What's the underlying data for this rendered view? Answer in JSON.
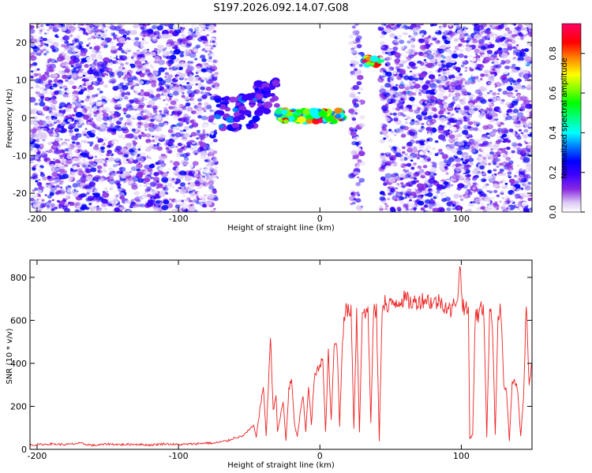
{
  "title": "S197.2026.092.14.07.G08",
  "chart_data": [
    {
      "type": "heatmap",
      "xlabel": "Height of straight line (km)",
      "ylabel": "Frequency (Hz)",
      "xlim": [
        -205,
        150
      ],
      "ylim": [
        -25,
        25
      ],
      "xticks": [
        -200,
        -100,
        0,
        100
      ],
      "yticks": [
        -20,
        -10,
        0,
        10,
        20
      ],
      "colorbar": {
        "label": "Normalized spectral amplitude",
        "range": [
          0,
          0.95
        ],
        "ticks": [
          0.0,
          0.2,
          0.4,
          0.6,
          0.8
        ],
        "colors": [
          "#ffffff",
          "#dcc8f5",
          "#8a2be2",
          "#3a00ff",
          "#0000ff",
          "#0080ff",
          "#00ffff",
          "#00ff80",
          "#00ff00",
          "#80ff00",
          "#ffff00",
          "#ff8000",
          "#ff0000",
          "#ff0066"
        ]
      },
      "features": [
        {
          "x_range": [
            -205,
            -73
          ],
          "y_range": [
            -25,
            25
          ],
          "kind": "noise",
          "amplitude": 0.15
        },
        {
          "x_range": [
            -73,
            -45
          ],
          "y_range": [
            -3,
            6
          ],
          "kind": "track",
          "amplitude": 0.35
        },
        {
          "x_range": [
            -45,
            -30
          ],
          "y_range": [
            1,
            10
          ],
          "kind": "track",
          "amplitude": 0.3
        },
        {
          "x_range": [
            -30,
            17
          ],
          "y_range": [
            -1,
            2
          ],
          "kind": "track",
          "amplitude": 0.95
        },
        {
          "x_range": [
            22,
            30
          ],
          "y_range": [
            -25,
            25
          ],
          "kind": "stripe",
          "amplitude": 0.15
        },
        {
          "x_range": [
            31,
            43
          ],
          "y_range": [
            14,
            16
          ],
          "kind": "track",
          "amplitude": 0.95
        },
        {
          "x_range": [
            43,
            150
          ],
          "y_range": [
            -25,
            25
          ],
          "kind": "noise",
          "amplitude": 0.15
        }
      ]
    },
    {
      "type": "line",
      "xlabel": "Height of straight line (km)",
      "ylabel": "SNR (10 * v/v)",
      "xlim": [
        -205,
        150
      ],
      "ylim": [
        0,
        880
      ],
      "xticks": [
        -200,
        -100,
        0,
        100
      ],
      "yticks": [
        0,
        200,
        400,
        600,
        800
      ],
      "series": [
        {
          "color": "#ee2020",
          "x": [
            -205,
            -190,
            -180,
            -170,
            -160,
            -150,
            -140,
            -130,
            -120,
            -110,
            -100,
            -90,
            -80,
            -75,
            -70,
            -65,
            -60,
            -55,
            -50,
            -47,
            -45,
            -42,
            -40,
            -38,
            -35,
            -33,
            -31,
            -30,
            -28,
            -26,
            -24,
            -22,
            -20,
            -18,
            -16,
            -14,
            -12,
            -10,
            -8,
            -6,
            -4,
            -2,
            0,
            2,
            4,
            6,
            8,
            10,
            12,
            14,
            16,
            18,
            20,
            22,
            24,
            26,
            28,
            30,
            32,
            34,
            36,
            38,
            40,
            42,
            44,
            46,
            48,
            50,
            55,
            60,
            65,
            70,
            75,
            80,
            85,
            90,
            93,
            96,
            98,
            99,
            100,
            101,
            102,
            105,
            106,
            108,
            110,
            112,
            114,
            116,
            118,
            120,
            122,
            124,
            126,
            128,
            130,
            132,
            134,
            136,
            138,
            140,
            142,
            144,
            146,
            148,
            150
          ],
          "y": [
            20,
            25,
            22,
            28,
            18,
            25,
            22,
            24,
            20,
            26,
            22,
            25,
            30,
            28,
            35,
            40,
            55,
            60,
            90,
            110,
            60,
            200,
            300,
            60,
            520,
            180,
            260,
            80,
            150,
            220,
            40,
            280,
            320,
            120,
            60,
            160,
            250,
            80,
            300,
            110,
            330,
            360,
            400,
            420,
            80,
            450,
            130,
            470,
            500,
            110,
            520,
            650,
            640,
            660,
            100,
            640,
            80,
            650,
            620,
            660,
            120,
            650,
            640,
            40,
            660,
            690,
            640,
            680,
            690,
            700,
            680,
            690,
            700,
            680,
            690,
            660,
            640,
            700,
            720,
            880,
            750,
            680,
            660,
            640,
            50,
            70,
            640,
            620,
            660,
            630,
            60,
            640,
            600,
            70,
            620,
            650,
            300,
            270,
            40,
            300,
            320,
            260,
            60,
            250,
            680,
            300,
            400
          ]
        }
      ]
    }
  ]
}
